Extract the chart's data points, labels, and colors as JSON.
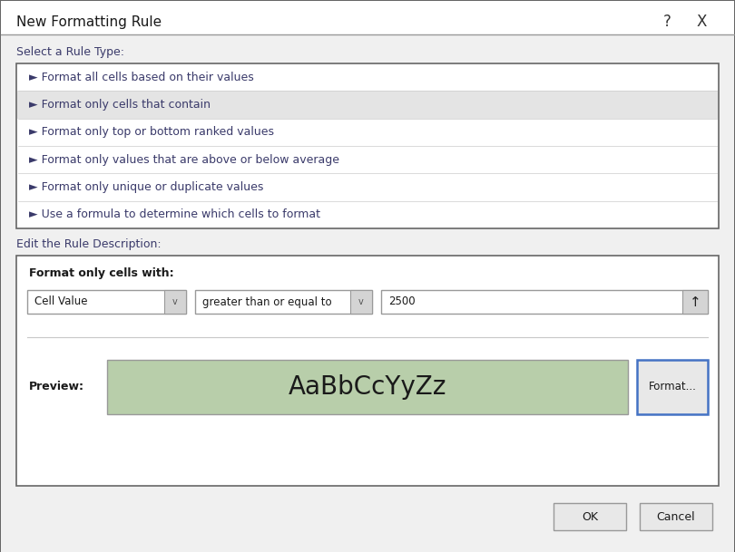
{
  "title": "New Formatting Rule",
  "outer_bg": "#e8e8e8",
  "dialog_bg": "#f0f0f0",
  "white": "#ffffff",
  "list_bg": "#ffffff",
  "selected_row_bg": "#e4e4e4",
  "desc_box_bg": "#ffffff",
  "green_preview_bg": "#b8ceaa",
  "border_dark": "#666666",
  "border_mid": "#999999",
  "border_light": "#cccccc",
  "text_color": "#1a1a1a",
  "label_color": "#3a3a6a",
  "title_bar_bg": "#ffffff",
  "btn_bg": "#e8e8e8",
  "btn_border": "#999999",
  "format_btn_border": "#4472c4",
  "rule_types": [
    "► Format all cells based on their values",
    "► Format only cells that contain",
    "► Format only top or bottom ranked values",
    "► Format only values that are above or below average",
    "► Format only unique or duplicate values",
    "► Use a formula to determine which cells to format"
  ],
  "selected_rule_index": 1,
  "section1_label": "Select a Rule Type:",
  "section2_label": "Edit the Rule Description:",
  "format_cells_with_label": "Format only cells with:",
  "dropdown1_text": "Cell Value",
  "dropdown2_text": "greater than or equal to",
  "value_text": "2500",
  "preview_label": "Preview:",
  "preview_text": "AaBbCcYyZz",
  "format_btn_text": "Format...",
  "ok_btn_text": "OK",
  "cancel_btn_text": "Cancel",
  "help_symbol": "?",
  "close_symbol": "X",
  "title_fs": 11,
  "body_fs": 9,
  "bold_fs": 9,
  "preview_fs": 20
}
